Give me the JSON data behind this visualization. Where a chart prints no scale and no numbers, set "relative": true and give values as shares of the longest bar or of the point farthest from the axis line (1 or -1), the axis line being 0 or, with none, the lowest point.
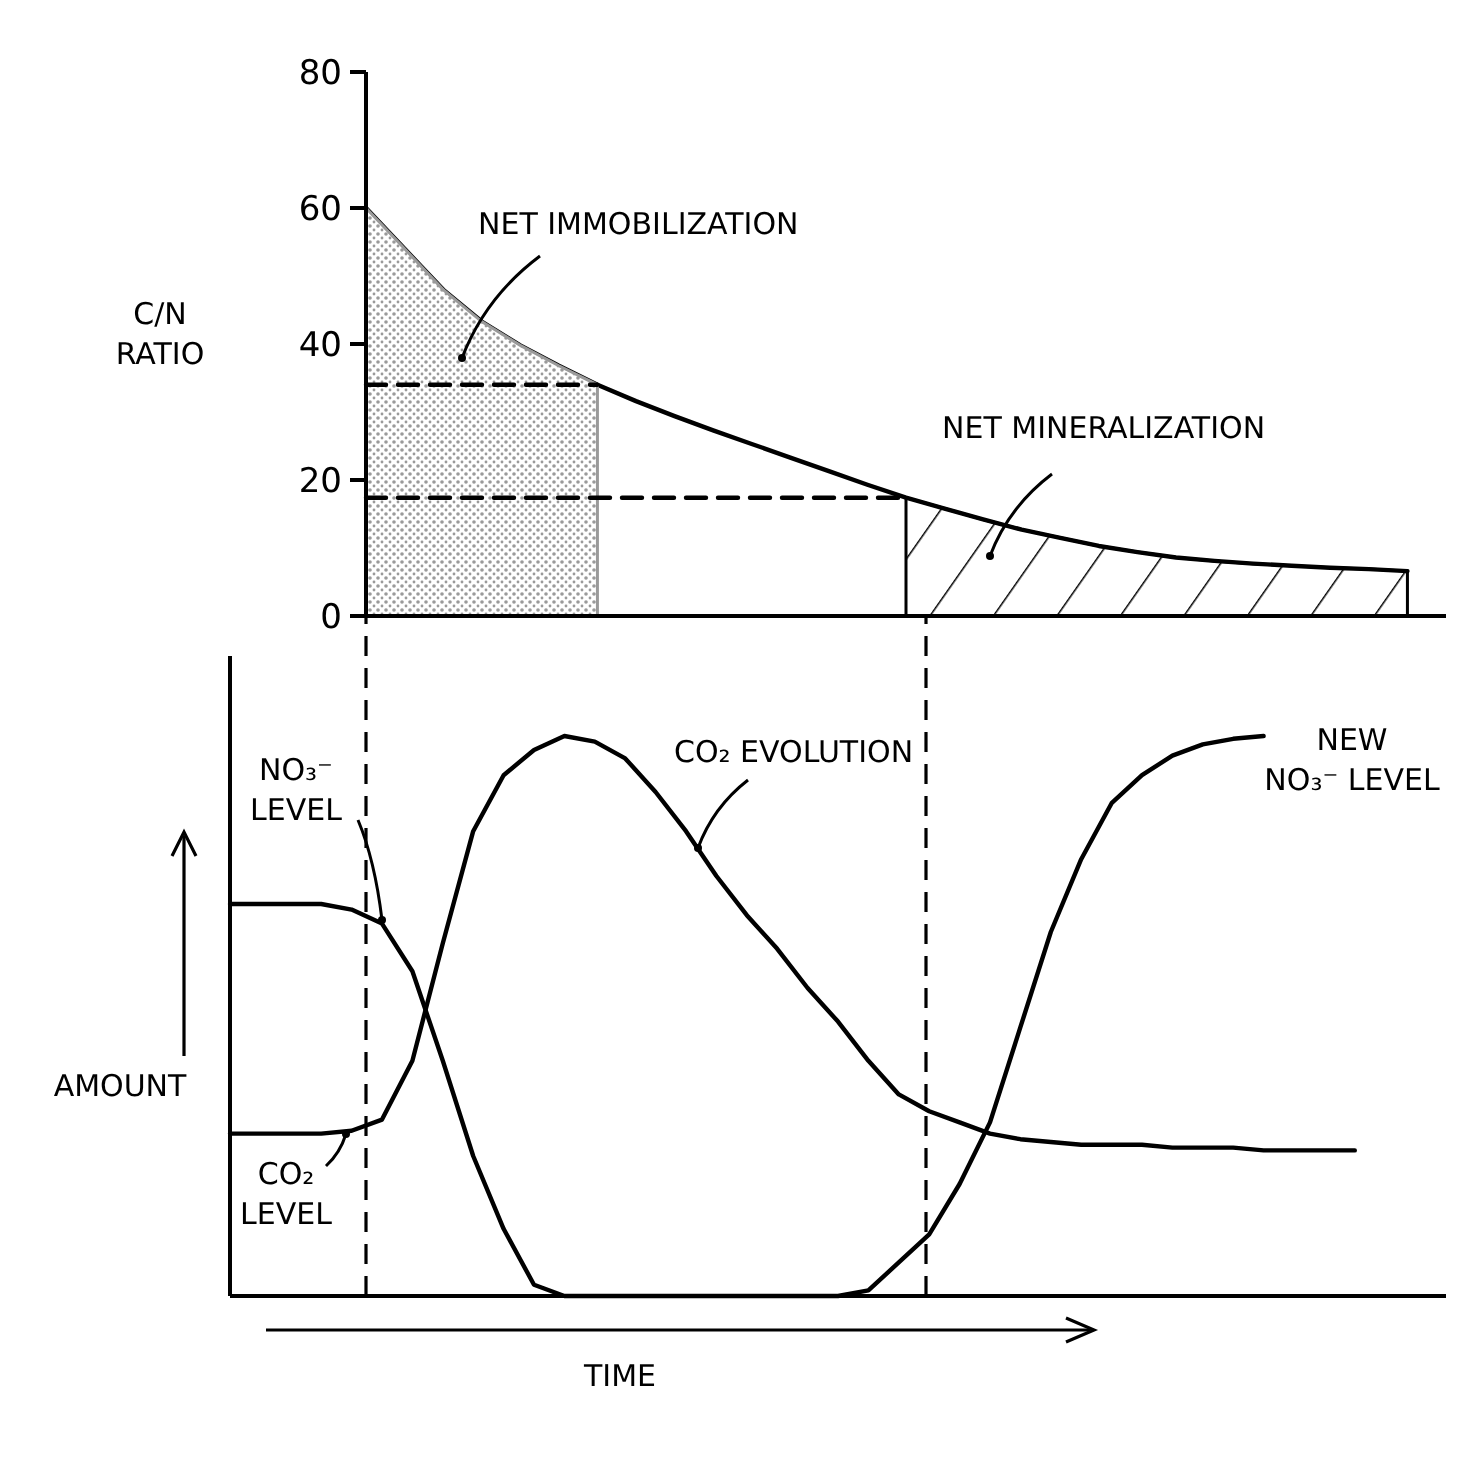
{
  "chart_data": [
    {
      "type": "line",
      "ylabel": "C/N RATIO",
      "categories": [
        null,
        null,
        null,
        null,
        null,
        null,
        null,
        null,
        null,
        null,
        null,
        null,
        null,
        null,
        null,
        null,
        null,
        null,
        null,
        null,
        null,
        null,
        null,
        null,
        null,
        null,
        null,
        null,
        null
      ],
      "ylim": [
        0,
        80
      ],
      "yticks": [
        0,
        20,
        40,
        60,
        80
      ],
      "tick_labels": "y",
      "series": [
        {
          "color": "#000000",
          "values": [
            60,
            54,
            48,
            43.3,
            39.8,
            36.8,
            34,
            31.6,
            29.4,
            27.3,
            25.3,
            23.3,
            21.3,
            19.3,
            17.4,
            15.8,
            14.2,
            12.7,
            11.5,
            10.3,
            9.4,
            8.6,
            8.1,
            7.7,
            7.4,
            7.1,
            6.9,
            6.6,
            null
          ]
        },
        {
          "type": "area",
          "color": "#9a9a9a",
          "values": [
            60,
            54,
            48,
            43.3,
            39.8,
            36.8,
            34,
            null,
            null,
            null,
            null,
            null,
            null,
            null,
            null,
            null,
            null,
            null,
            null,
            null,
            null,
            null,
            null,
            null,
            null,
            null,
            null,
            null,
            null
          ]
        },
        {
          "type": "area",
          "color": "#000000",
          "values": [
            null,
            null,
            null,
            null,
            null,
            null,
            null,
            null,
            null,
            null,
            null,
            null,
            null,
            null,
            17.4,
            15.8,
            14.2,
            12.7,
            11.5,
            10.3,
            9.4,
            8.6,
            8.1,
            7.7,
            7.4,
            7.1,
            6.9,
            6.6,
            null
          ]
        },
        {
          "color": "#000000",
          "line_style": "dashed",
          "values": [
            34,
            34,
            34,
            34,
            34,
            34,
            34,
            null,
            null,
            null,
            null,
            null,
            null,
            null,
            null,
            null,
            null,
            null,
            null,
            null,
            null,
            null,
            null,
            null,
            null,
            null,
            null,
            null,
            null
          ]
        },
        {
          "color": "#000000",
          "line_style": "dashed",
          "values": [
            17.4,
            17.4,
            17.4,
            17.4,
            17.4,
            17.4,
            17.4,
            17.4,
            17.4,
            17.4,
            17.4,
            17.4,
            17.4,
            17.4,
            17.4,
            null,
            null,
            null,
            null,
            null,
            null,
            null,
            null,
            null,
            null,
            null,
            null,
            null,
            null
          ]
        }
      ],
      "annotations": [
        "NET IMMOBILIZATION",
        "NET MINERALIZATION"
      ]
    },
    {
      "type": "line",
      "relative": true,
      "xlabel": "TIME",
      "ylabel": "AMOUNT",
      "tick_labels": false,
      "categories": [
        null,
        null,
        null,
        null,
        null,
        null,
        null,
        null,
        null,
        null,
        null,
        null,
        null,
        null,
        null,
        null,
        null,
        null,
        null,
        null,
        null,
        null,
        null,
        null,
        null,
        null,
        null,
        null,
        null,
        null,
        null,
        null,
        null,
        null,
        null,
        null,
        null,
        null,
        null,
        null,
        null
      ],
      "series": [
        {
          "color": "#000000",
          "values": [
            0.7,
            0.7,
            0.7,
            0.7,
            0.69,
            0.665,
            0.58,
            0.42,
            0.25,
            0.12,
            0.02,
            0,
            0,
            0,
            0,
            0,
            0,
            0,
            0,
            0,
            0,
            0.01,
            0.06,
            0.11,
            0.2,
            0.31,
            0.48,
            0.65,
            0.78,
            0.88,
            0.93,
            0.965,
            0.985,
            0.995,
            1,
            null,
            null,
            null,
            null,
            null,
            null
          ]
        },
        {
          "color": "#000000",
          "values": [
            0.29,
            0.29,
            0.29,
            0.29,
            0.295,
            0.315,
            0.42,
            0.63,
            0.83,
            0.93,
            0.975,
            1,
            0.99,
            0.96,
            0.9,
            0.83,
            0.75,
            0.68,
            0.62,
            0.55,
            0.49,
            0.42,
            0.36,
            0.33,
            0.31,
            0.29,
            0.28,
            0.275,
            0.27,
            0.27,
            0.27,
            0.265,
            0.265,
            0.265,
            0.26,
            0.26,
            0.26,
            0.26,
            null,
            null,
            null
          ]
        }
      ],
      "annotations": [
        "NO₃⁻ LEVEL",
        "CO₂ LEVEL",
        "CO₂ EVOLUTION",
        "NEW NO₃⁻ LEVEL"
      ]
    }
  ]
}
